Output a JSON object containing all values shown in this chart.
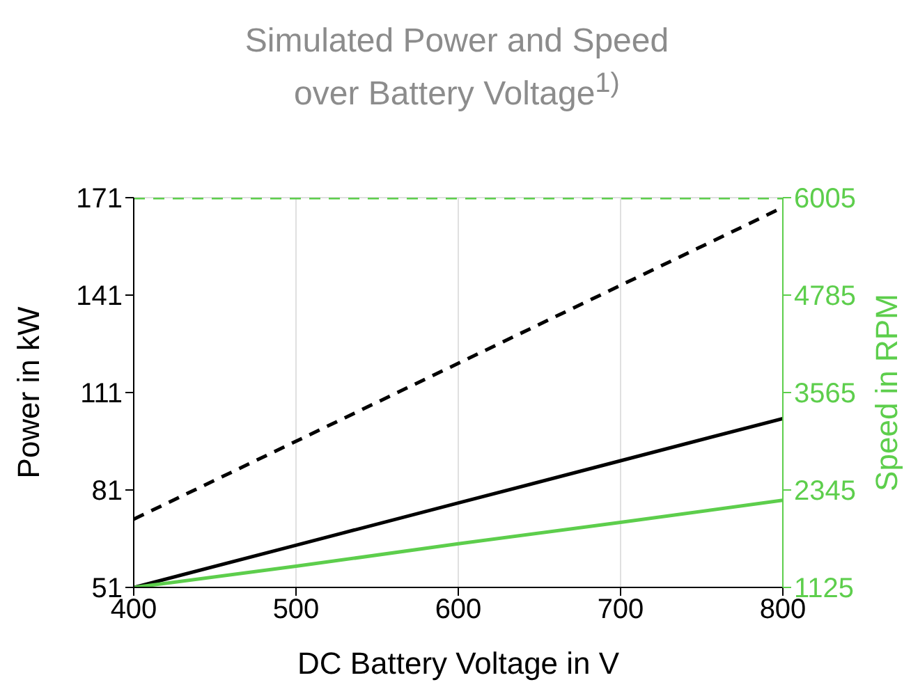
{
  "chart_data": {
    "type": "line",
    "title": "Simulated Power and Speed over Battery Voltage$^{1)}$",
    "xlabel": "DC Battery Voltage in V",
    "ylabel": "Power in kW",
    "y2label": "Speed in RPM",
    "x": [
      400,
      500,
      600,
      700,
      800
    ],
    "series": [
      {
        "color": "#000000",
        "values": [
          51,
          64,
          77,
          90,
          103
        ],
        "line_style": "solid"
      },
      {
        "color": "#000000",
        "values": [
          72,
          96,
          120,
          144,
          168
        ],
        "line_style": "dashed"
      },
      {
        "color": "#5dce4c",
        "values": [
          1125,
          1390,
          1671,
          1940,
          2217
        ],
        "line_style": "solid",
        "axis": "y2"
      },
      {
        "color": "#5dce4c",
        "values": [
          6005,
          6005,
          6005,
          6005,
          6005
        ],
        "line_style": "dashed",
        "axis": "y2"
      }
    ],
    "xlim": [
      400,
      800
    ],
    "xticks": [
      400,
      500,
      600,
      700,
      800
    ],
    "ylim": [
      51,
      171
    ],
    "yticks": [
      51,
      81,
      111,
      141,
      171
    ],
    "y2lim": [
      1125,
      6005
    ],
    "y2ticks": [
      1125,
      2345,
      3565,
      4785,
      6005
    ],
    "grid": true,
    "legend": false,
    "marker": "none"
  }
}
